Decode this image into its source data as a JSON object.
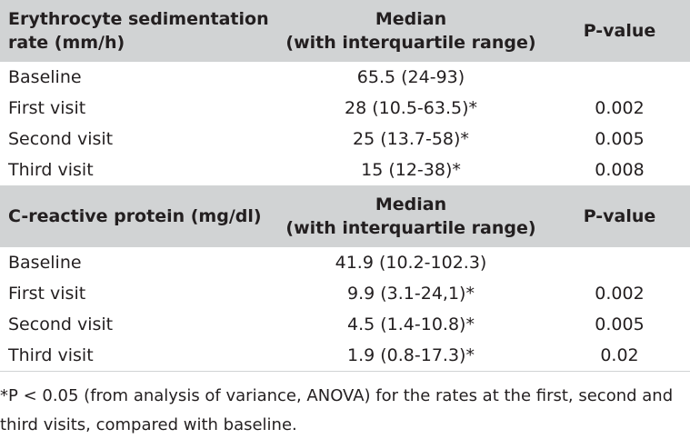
{
  "sections": [
    {
      "header": {
        "col1": "Erythrocyte sedimentation rate (mm/h)",
        "col2_line1": "Median",
        "col2_line2": "(with interquartile range)",
        "col3": "P-value"
      },
      "rows": [
        {
          "label": "Baseline",
          "median": "65.5 (24-93)",
          "pvalue": ""
        },
        {
          "label": "First visit",
          "median": "28 (10.5-63.5)*",
          "pvalue": "0.002"
        },
        {
          "label": "Second visit",
          "median": "25 (13.7-58)*",
          "pvalue": "0.005"
        },
        {
          "label": "Third visit",
          "median": "15 (12-38)*",
          "pvalue": "0.008"
        }
      ]
    },
    {
      "header": {
        "col1": "C-reactive protein (mg/dl)",
        "col2_line1": "Median",
        "col2_line2": "(with interquartile range)",
        "col3": "P-value"
      },
      "rows": [
        {
          "label": "Baseline",
          "median": "41.9 (10.2-102.3)",
          "pvalue": ""
        },
        {
          "label": "First visit",
          "median": "9.9 (3.1-24,1)*",
          "pvalue": "0.002"
        },
        {
          "label": "Second visit",
          "median": "4.5 (1.4-10.8)*",
          "pvalue": "0.005"
        },
        {
          "label": "Third visit",
          "median": "1.9 (0.8-17.3)*",
          "pvalue": "0.02"
        }
      ]
    }
  ],
  "footnote": "*P < 0.05 (from analysis of variance, ANOVA) for the rates at the first, second and third visits, compared with baseline."
}
